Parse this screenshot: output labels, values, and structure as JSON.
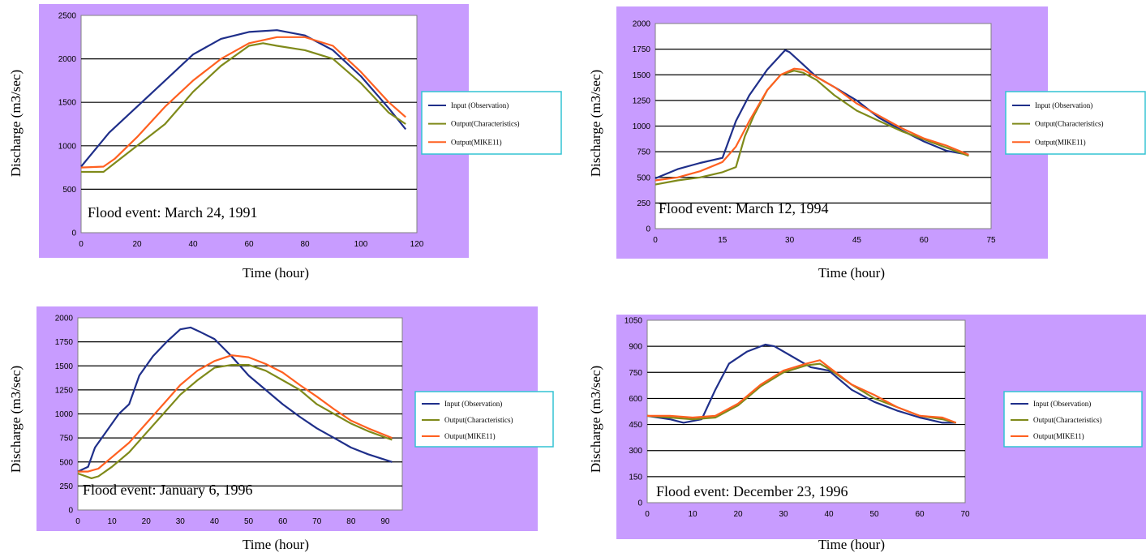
{
  "colors": {
    "background": "#c89cff",
    "plot_area": "#ffffff",
    "legend_border": "#33c3d3",
    "series": [
      "#1f2f8a",
      "#7f8a1a",
      "#ff6020"
    ]
  },
  "chart_data": [
    {
      "type": "line",
      "annotation": "Flood event: March 24, 1991",
      "xlabel": "Time (hour)",
      "ylabel": "Discharge (m3/sec)",
      "xlim": [
        0,
        120
      ],
      "ylim": [
        0,
        2500
      ],
      "xticks": [
        0,
        20,
        40,
        60,
        80,
        100,
        120
      ],
      "yticks": [
        0,
        500,
        1000,
        1500,
        2000,
        2500
      ],
      "legend_position": "right",
      "grid": "horizontal",
      "series": [
        {
          "name": "Input (Observation)",
          "x": [
            0,
            10,
            20,
            30,
            40,
            50,
            60,
            70,
            80,
            90,
            100,
            110,
            116
          ],
          "y": [
            760,
            1150,
            1450,
            1750,
            2050,
            2230,
            2310,
            2330,
            2270,
            2100,
            1800,
            1430,
            1190
          ]
        },
        {
          "name": "Output(Characteristics)",
          "x": [
            0,
            8,
            12,
            20,
            30,
            40,
            50,
            60,
            65,
            70,
            80,
            90,
            100,
            110,
            116
          ],
          "y": [
            700,
            700,
            800,
            1000,
            1250,
            1620,
            1920,
            2150,
            2180,
            2150,
            2100,
            2000,
            1720,
            1380,
            1250
          ]
        },
        {
          "name": "Output(MIKE11)",
          "x": [
            0,
            8,
            12,
            20,
            30,
            40,
            50,
            60,
            70,
            80,
            90,
            100,
            110,
            116
          ],
          "y": [
            750,
            760,
            850,
            1100,
            1450,
            1750,
            2000,
            2180,
            2250,
            2250,
            2150,
            1850,
            1500,
            1330
          ]
        }
      ]
    },
    {
      "type": "line",
      "annotation": "Flood event: March 12, 1994",
      "xlabel": "Time (hour)",
      "ylabel": "Discharge (m3/sec)",
      "xlim": [
        0,
        75
      ],
      "ylim": [
        0,
        2000
      ],
      "xticks": [
        0,
        15,
        30,
        45,
        60,
        75
      ],
      "yticks": [
        0,
        250,
        500,
        750,
        1000,
        1250,
        1500,
        1750,
        2000
      ],
      "legend_position": "right",
      "grid": "horizontal",
      "series": [
        {
          "name": "Input (Observation)",
          "x": [
            0,
            5,
            10,
            15,
            18,
            21,
            25,
            29,
            30,
            33,
            36,
            40,
            45,
            50,
            55,
            60,
            65,
            70
          ],
          "y": [
            490,
            580,
            640,
            690,
            1050,
            1300,
            1550,
            1740,
            1720,
            1600,
            1480,
            1380,
            1250,
            1080,
            960,
            850,
            760,
            720
          ]
        },
        {
          "name": "Output(Characteristics)",
          "x": [
            0,
            5,
            10,
            15,
            18,
            20,
            22,
            25,
            28,
            31,
            33,
            36,
            40,
            45,
            50,
            55,
            60,
            65,
            70
          ],
          "y": [
            430,
            470,
            500,
            550,
            600,
            900,
            1100,
            1350,
            1500,
            1540,
            1520,
            1450,
            1300,
            1150,
            1050,
            950,
            870,
            790,
            710
          ]
        },
        {
          "name": "Output(MIKE11)",
          "x": [
            0,
            5,
            10,
            15,
            18,
            21,
            25,
            28,
            31,
            33,
            36,
            40,
            45,
            50,
            55,
            60,
            65,
            70
          ],
          "y": [
            470,
            500,
            560,
            650,
            800,
            1050,
            1350,
            1500,
            1560,
            1550,
            1480,
            1380,
            1220,
            1100,
            980,
            880,
            810,
            720
          ]
        }
      ]
    },
    {
      "type": "line",
      "annotation": "Flood event: January 6, 1996",
      "xlabel": "Time (hour)",
      "ylabel": "Discharge (m3/sec)",
      "xlim": [
        0,
        95
      ],
      "ylim": [
        0,
        2000
      ],
      "xticks": [
        0,
        10,
        20,
        30,
        40,
        50,
        60,
        70,
        80,
        90
      ],
      "yticks": [
        0,
        250,
        500,
        750,
        1000,
        1250,
        1500,
        1750,
        2000
      ],
      "legend_position": "right",
      "grid": "horizontal",
      "series": [
        {
          "name": "Input (Observation)",
          "x": [
            0,
            3,
            5,
            8,
            12,
            15,
            18,
            22,
            26,
            30,
            33,
            36,
            40,
            45,
            50,
            55,
            60,
            65,
            70,
            75,
            80,
            85,
            92
          ],
          "y": [
            400,
            450,
            650,
            800,
            1000,
            1100,
            1400,
            1600,
            1750,
            1880,
            1900,
            1850,
            1780,
            1600,
            1400,
            1250,
            1100,
            970,
            850,
            750,
            650,
            580,
            500
          ]
        },
        {
          "name": "Output(Characteristics)",
          "x": [
            0,
            4,
            6,
            10,
            15,
            20,
            25,
            30,
            35,
            40,
            45,
            50,
            55,
            60,
            65,
            70,
            75,
            80,
            85,
            92
          ],
          "y": [
            380,
            330,
            350,
            450,
            600,
            800,
            1000,
            1200,
            1350,
            1480,
            1510,
            1510,
            1450,
            1350,
            1250,
            1100,
            1000,
            900,
            820,
            730
          ]
        },
        {
          "name": "Output(MIKE11)",
          "x": [
            0,
            3,
            6,
            10,
            15,
            20,
            25,
            30,
            35,
            40,
            45,
            50,
            55,
            60,
            65,
            70,
            75,
            80,
            85,
            92
          ],
          "y": [
            400,
            400,
            430,
            550,
            700,
            900,
            1100,
            1300,
            1450,
            1550,
            1610,
            1590,
            1520,
            1430,
            1300,
            1180,
            1050,
            930,
            850,
            750
          ]
        }
      ]
    },
    {
      "type": "line",
      "annotation": "Flood event: December 23, 1996",
      "xlabel": "Time (hour)",
      "ylabel": "Discharge (m3/sec)",
      "xlim": [
        0,
        70
      ],
      "ylim": [
        0,
        1050
      ],
      "xticks": [
        0,
        10,
        20,
        30,
        40,
        50,
        60,
        70
      ],
      "yticks": [
        0,
        150,
        300,
        450,
        600,
        750,
        900,
        1050
      ],
      "legend_position": "right",
      "grid": "horizontal",
      "series": [
        {
          "name": "Input (Observation)",
          "x": [
            0,
            5,
            8,
            12,
            15,
            18,
            22,
            26,
            28,
            32,
            36,
            40,
            45,
            50,
            55,
            60,
            65,
            68
          ],
          "y": [
            500,
            480,
            460,
            480,
            650,
            800,
            870,
            910,
            900,
            840,
            780,
            760,
            650,
            580,
            530,
            490,
            460,
            460
          ]
        },
        {
          "name": "Output(Characteristics)",
          "x": [
            0,
            5,
            10,
            15,
            20,
            25,
            30,
            35,
            38,
            40,
            45,
            50,
            55,
            60,
            65,
            68
          ],
          "y": [
            500,
            490,
            480,
            490,
            560,
            670,
            750,
            790,
            800,
            770,
            680,
            600,
            550,
            500,
            480,
            460
          ]
        },
        {
          "name": "Output(MIKE11)",
          "x": [
            0,
            5,
            10,
            15,
            20,
            25,
            30,
            35,
            38,
            40,
            45,
            50,
            55,
            60,
            65,
            68
          ],
          "y": [
            500,
            500,
            490,
            500,
            570,
            680,
            760,
            800,
            820,
            780,
            680,
            620,
            550,
            500,
            490,
            460
          ]
        }
      ]
    }
  ]
}
